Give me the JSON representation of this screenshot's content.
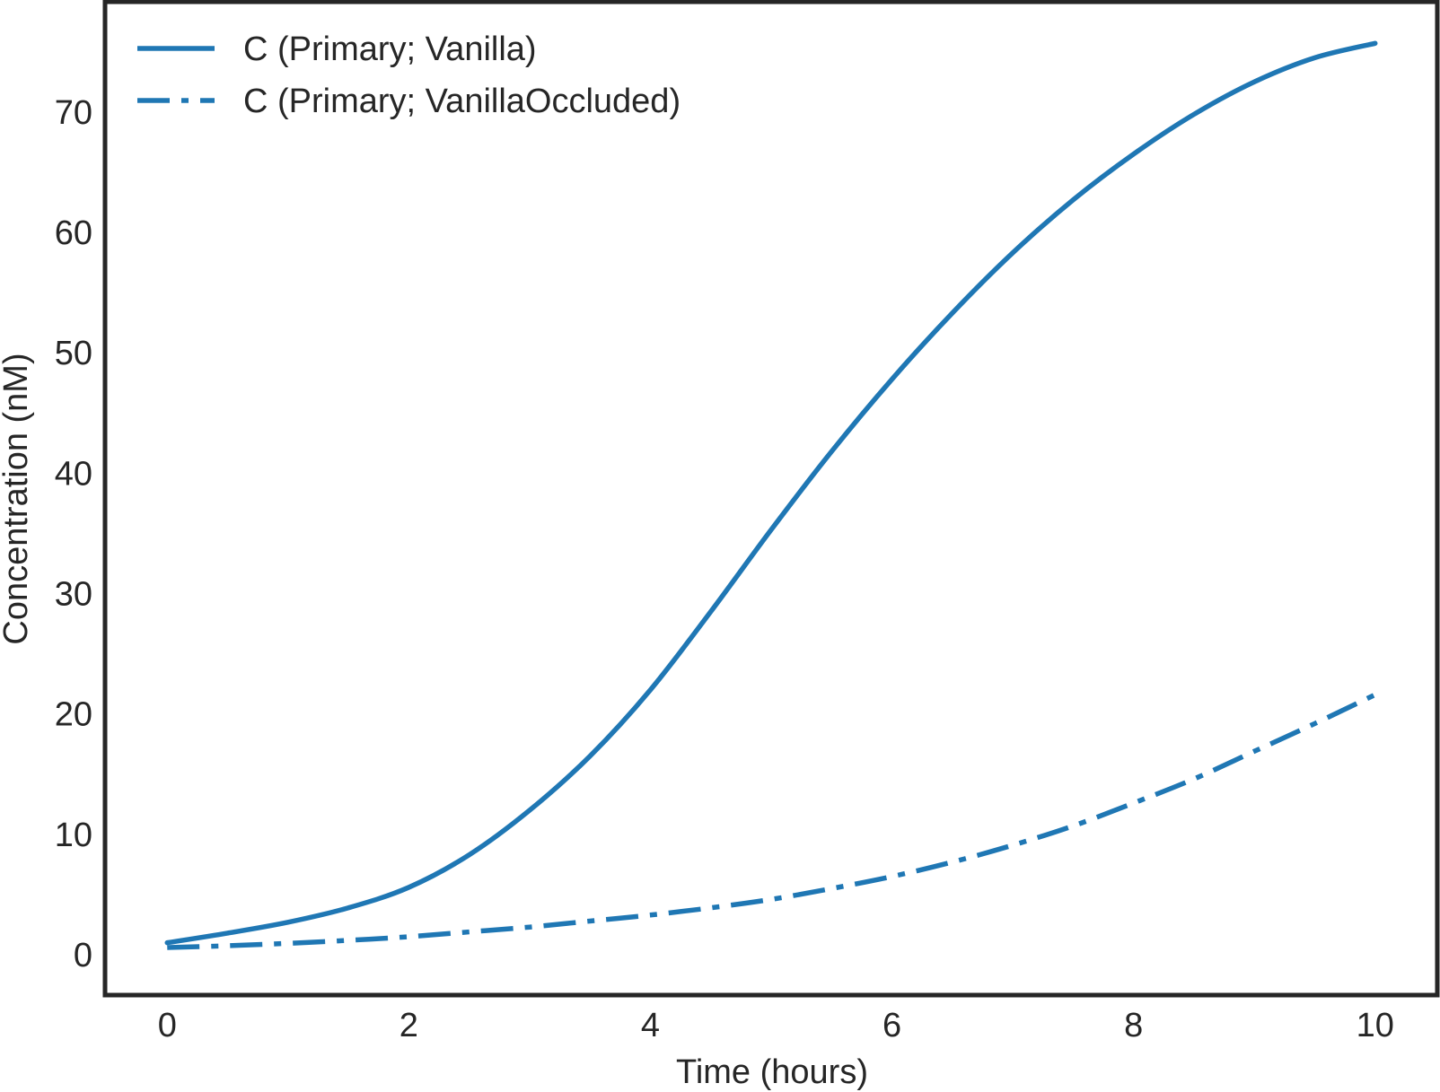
{
  "chart_data": {
    "type": "line",
    "title": "",
    "xlabel": "Time (hours)",
    "ylabel": "Concentration (nM)",
    "xlim": [
      -0.5,
      10.5
    ],
    "ylim": [
      -3.2,
      79.0
    ],
    "xticks": [
      0,
      2,
      4,
      6,
      8,
      10
    ],
    "xtick_labels": [
      "0",
      "2",
      "4",
      "6",
      "8",
      "10"
    ],
    "yticks": [
      0,
      10,
      20,
      30,
      40,
      50,
      60,
      70
    ],
    "ytick_labels": [
      "0",
      "10",
      "20",
      "30",
      "40",
      "50",
      "60",
      "70"
    ],
    "grid": false,
    "legend_position": "top-left",
    "color": "#1f77b4",
    "x": [
      0,
      0.5,
      1,
      1.5,
      2,
      2.5,
      3,
      3.5,
      4,
      4.5,
      5,
      5.5,
      6,
      6.5,
      7,
      7.5,
      8,
      8.5,
      9,
      9.5,
      10
    ],
    "series": [
      {
        "name": "C (Primary; Vanilla)",
        "style": "solid",
        "values": [
          1.0,
          1.8,
          2.7,
          3.9,
          5.6,
          8.3,
          12.0,
          16.5,
          22.0,
          28.5,
          35.3,
          41.8,
          47.8,
          53.3,
          58.3,
          62.7,
          66.5,
          69.8,
          72.5,
          74.5,
          75.7
        ]
      },
      {
        "name": "C (Primary; VanillaOccluded)",
        "style": "dashdot",
        "values": [
          0.6,
          0.75,
          0.95,
          1.2,
          1.5,
          1.9,
          2.3,
          2.8,
          3.3,
          3.9,
          4.6,
          5.5,
          6.5,
          7.7,
          9.1,
          10.7,
          12.6,
          14.6,
          16.9,
          19.2,
          21.6
        ]
      }
    ]
  }
}
